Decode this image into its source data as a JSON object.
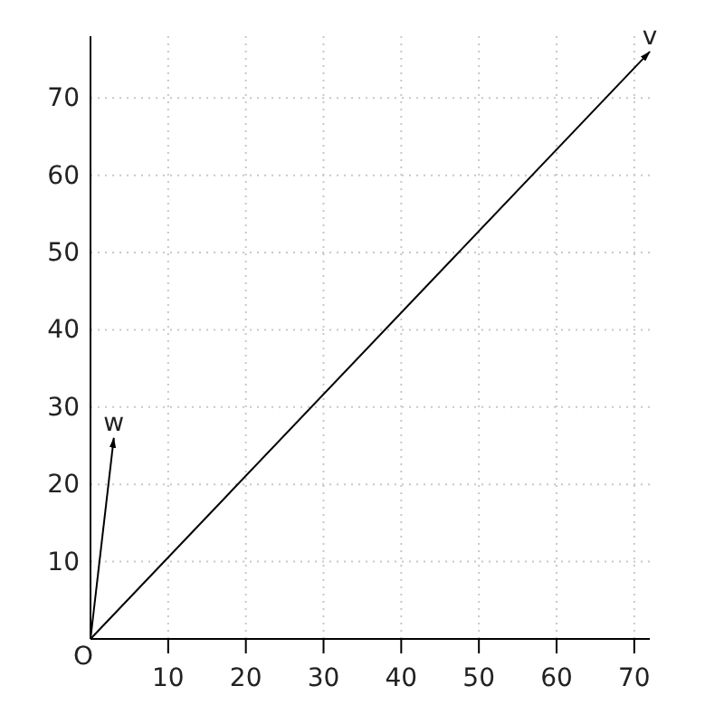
{
  "chart_data": {
    "type": "line",
    "xlim": [
      0,
      72
    ],
    "ylim": [
      0,
      78
    ],
    "xticks": [
      10,
      20,
      30,
      40,
      50,
      60,
      70
    ],
    "yticks": [
      10,
      20,
      30,
      40,
      50,
      60,
      70
    ],
    "grid": true,
    "marker": "none",
    "line_style": "solid",
    "legend": false,
    "annotations": [
      {
        "text": "O",
        "x": 0,
        "y": 0
      }
    ],
    "series": [
      {
        "name": "v",
        "color": "#000000",
        "x": [
          0,
          72
        ],
        "values": [
          0,
          76
        ]
      },
      {
        "name": "w",
        "color": "#000000",
        "x": [
          0,
          3
        ],
        "values": [
          0,
          26
        ]
      }
    ]
  }
}
